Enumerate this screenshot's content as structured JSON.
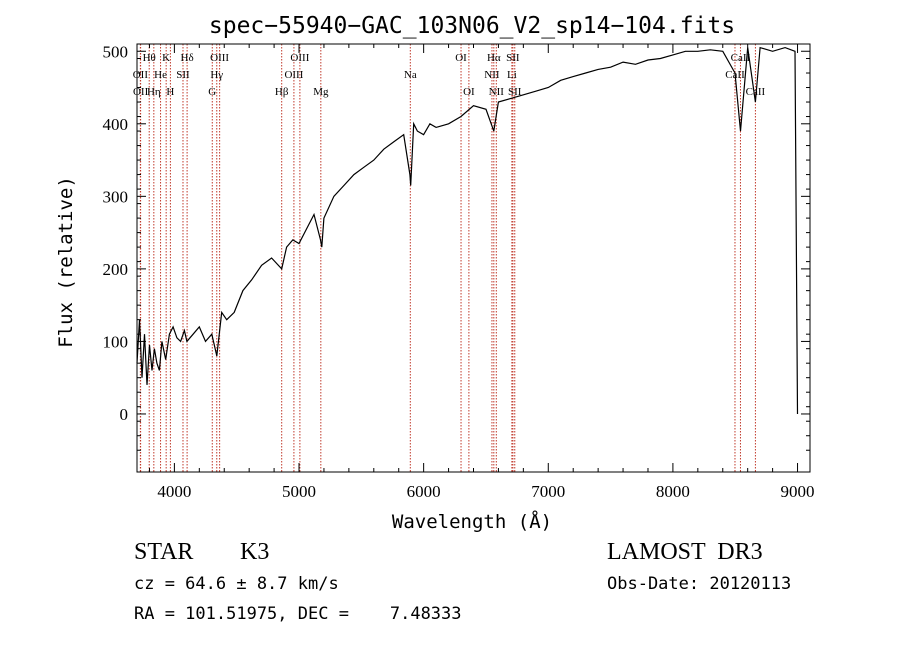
{
  "chart_data": {
    "type": "line",
    "title": "spec−55940−GAC_103N06_V2_sp14−104.fits",
    "xlabel": "Wavelength (Å)",
    "ylabel": "Flux (relative)",
    "xlim": [
      3700,
      9100
    ],
    "ylim": [
      -80,
      510
    ],
    "xticks": [
      4000,
      5000,
      6000,
      7000,
      8000,
      9000
    ],
    "yticks": [
      0,
      100,
      200,
      300,
      400,
      500
    ],
    "series": [
      {
        "name": "spectrum",
        "x": [
          3700,
          3720,
          3740,
          3760,
          3780,
          3800,
          3820,
          3840,
          3860,
          3880,
          3900,
          3930,
          3960,
          3990,
          4020,
          4050,
          4080,
          4100,
          4150,
          4200,
          4250,
          4300,
          4340,
          4380,
          4420,
          4480,
          4550,
          4620,
          4700,
          4780,
          4861,
          4900,
          4950,
          5000,
          5060,
          5120,
          5172,
          5183,
          5200,
          5280,
          5360,
          5440,
          5520,
          5600,
          5680,
          5760,
          5840,
          5890,
          5896,
          5920,
          5950,
          6000,
          6050,
          6100,
          6200,
          6300,
          6400,
          6500,
          6563,
          6600,
          6700,
          6800,
          6900,
          7000,
          7100,
          7200,
          7300,
          7400,
          7500,
          7600,
          7700,
          7800,
          7900,
          8000,
          8100,
          8200,
          8300,
          8400,
          8498,
          8542,
          8600,
          8662,
          8700,
          8800,
          8900,
          8980,
          9000
        ],
        "values": [
          70,
          130,
          50,
          110,
          40,
          95,
          60,
          90,
          70,
          60,
          100,
          75,
          110,
          120,
          105,
          100,
          115,
          100,
          110,
          120,
          100,
          110,
          80,
          140,
          130,
          140,
          170,
          185,
          205,
          215,
          200,
          230,
          240,
          235,
          255,
          275,
          240,
          230,
          270,
          300,
          315,
          330,
          340,
          350,
          365,
          375,
          385,
          330,
          315,
          400,
          390,
          385,
          400,
          395,
          400,
          410,
          425,
          420,
          390,
          430,
          435,
          440,
          445,
          450,
          460,
          465,
          470,
          475,
          478,
          485,
          482,
          488,
          490,
          495,
          500,
          500,
          502,
          500,
          470,
          390,
          505,
          430,
          505,
          500,
          505,
          500,
          0
        ]
      }
    ],
    "lines": [
      {
        "name": "Hθ",
        "wl": 3798,
        "row": 0
      },
      {
        "name": "OII",
        "wl": 3727,
        "row": 1
      },
      {
        "name": "OII",
        "wl": 3729,
        "row": 2
      },
      {
        "name": "Hη",
        "wl": 3835,
        "row": 2
      },
      {
        "name": "He",
        "wl": 3889,
        "row": 1
      },
      {
        "name": "K",
        "wl": 3934,
        "row": 0
      },
      {
        "name": "H",
        "wl": 3968,
        "row": 2
      },
      {
        "name": "SII",
        "wl": 4069,
        "row": 1
      },
      {
        "name": "Hδ",
        "wl": 4102,
        "row": 0
      },
      {
        "name": "G",
        "wl": 4304,
        "row": 2
      },
      {
        "name": "Hγ",
        "wl": 4340,
        "row": 1
      },
      {
        "name": "OIII",
        "wl": 4363,
        "row": 0
      },
      {
        "name": "Hβ",
        "wl": 4861,
        "row": 2
      },
      {
        "name": "OIII",
        "wl": 4959,
        "row": 1
      },
      {
        "name": "OIII",
        "wl": 5007,
        "row": 0
      },
      {
        "name": "Mg",
        "wl": 5175,
        "row": 2
      },
      {
        "name": "Na",
        "wl": 5893,
        "row": 1
      },
      {
        "name": "OI",
        "wl": 6300,
        "row": 0
      },
      {
        "name": "OI",
        "wl": 6363,
        "row": 2
      },
      {
        "name": "NII",
        "wl": 6548,
        "row": 1
      },
      {
        "name": "Hα",
        "wl": 6563,
        "row": 0
      },
      {
        "name": "NII",
        "wl": 6583,
        "row": 2
      },
      {
        "name": "Li",
        "wl": 6708,
        "row": 1
      },
      {
        "name": "SII",
        "wl": 6716,
        "row": 0
      },
      {
        "name": "SII",
        "wl": 6731,
        "row": 2
      },
      {
        "name": "CaII",
        "wl": 8498,
        "row": 1
      },
      {
        "name": "CaII",
        "wl": 8542,
        "row": 0
      },
      {
        "name": "CaII",
        "wl": 8662,
        "row": 2
      }
    ]
  },
  "info": {
    "class": "STAR",
    "subclass": "K3",
    "survey": "LAMOST  DR3",
    "redshift": "cz = 64.6 ± 8.7 km/s",
    "obs_date": "Obs-Date: 20120113",
    "coords": "RA = 101.51975, DEC =    7.48333"
  },
  "colors": {
    "line_marker": "#c0392b",
    "spectrum": "#000000"
  }
}
